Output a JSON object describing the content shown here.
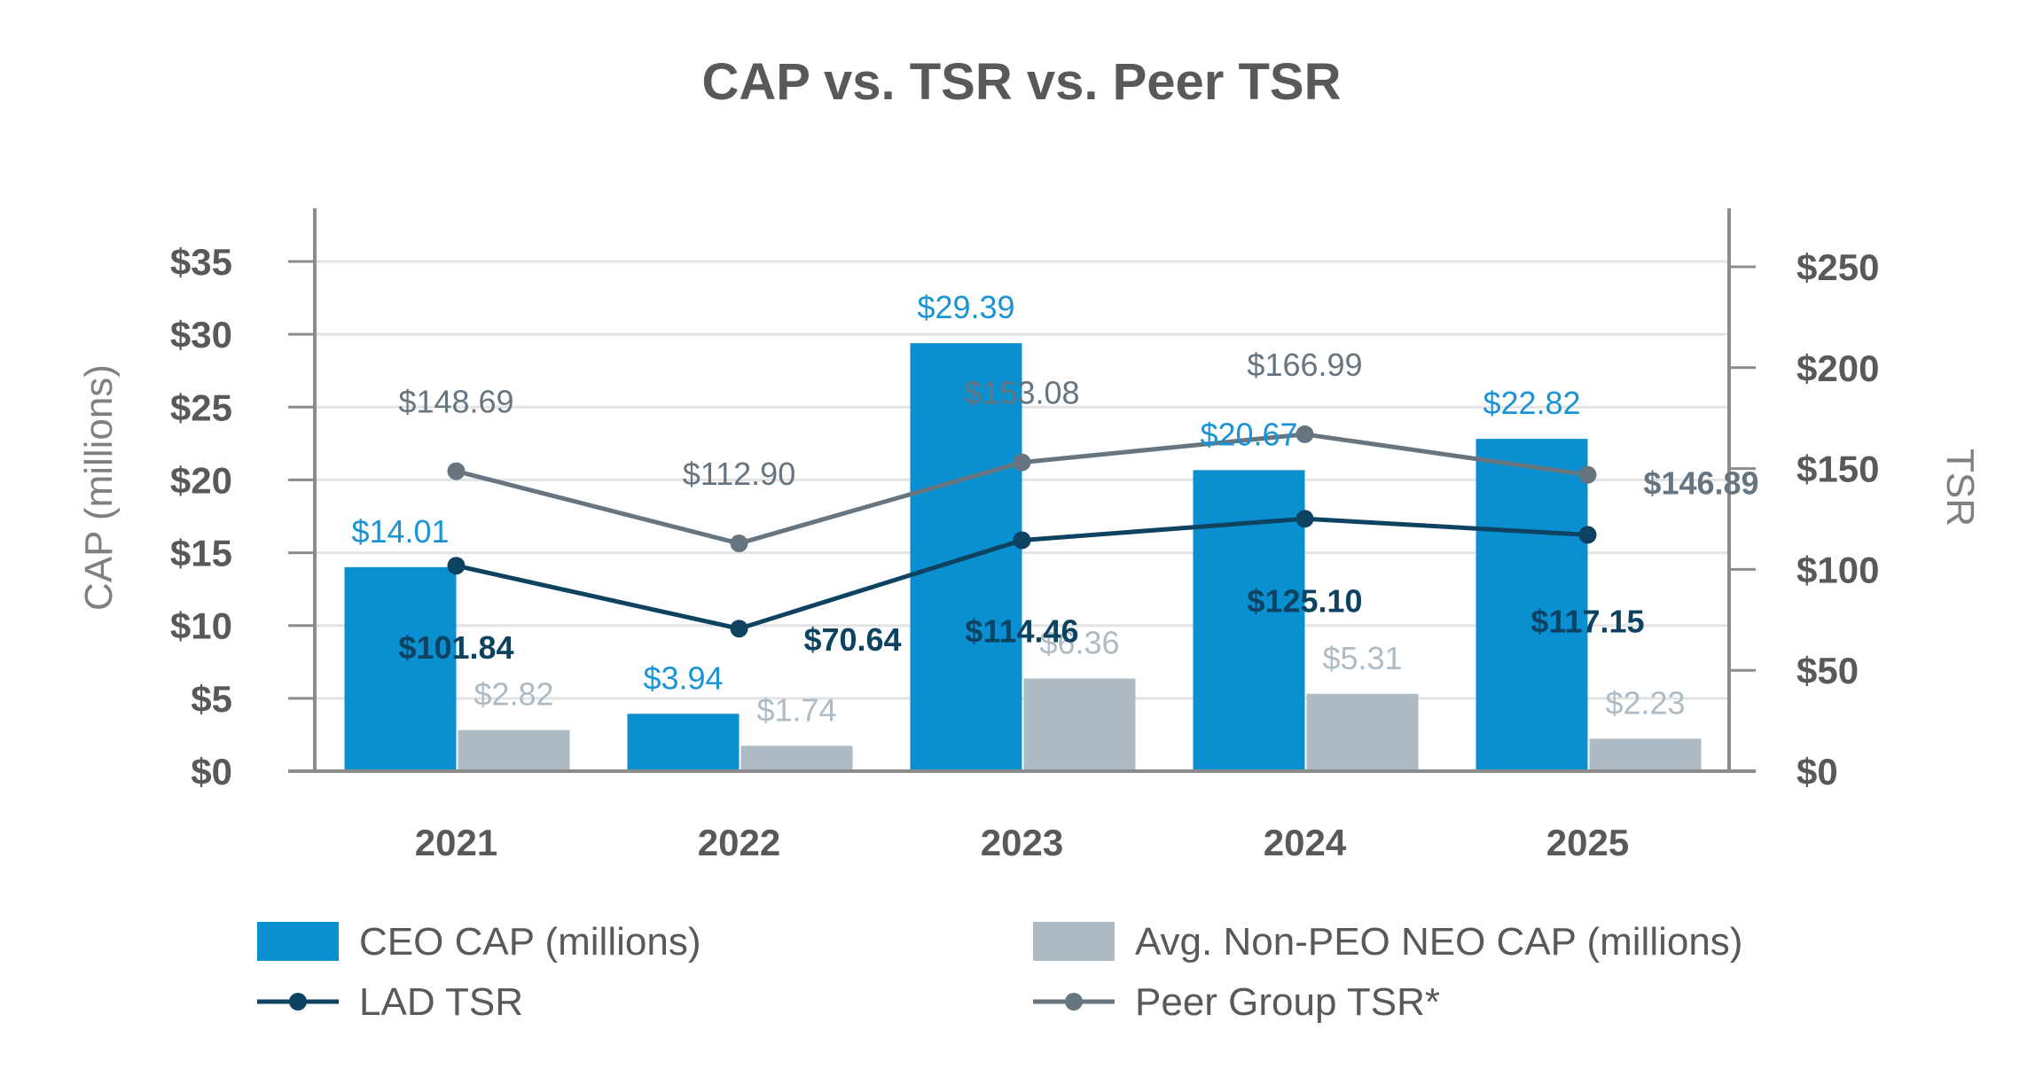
{
  "chart_data": {
    "type": "bar",
    "title": "CAP vs. TSR vs. Peer TSR",
    "categories": [
      "2021",
      "2022",
      "2023",
      "2024",
      "2025"
    ],
    "y_left": {
      "label": "CAP (millions)",
      "ylim": [
        0,
        35
      ],
      "ticks": [
        0,
        5,
        10,
        15,
        20,
        25,
        30,
        35
      ],
      "tick_labels": [
        "$0",
        "$5",
        "$10",
        "$15",
        "$20",
        "$25",
        "$30",
        "$35"
      ]
    },
    "y_right": {
      "label": "TSR",
      "ylim": [
        0,
        250
      ],
      "ticks": [
        0,
        50,
        100,
        150,
        200,
        250
      ],
      "tick_labels": [
        "$0",
        "$50",
        "$100",
        "$150",
        "$200",
        "$250"
      ]
    },
    "grid": true,
    "legend_position": "bottom",
    "series": [
      {
        "name": "CEO CAP (millions)",
        "kind": "bar",
        "axis": "left",
        "color": "#0a8fd0",
        "values": [
          14.01,
          3.94,
          29.39,
          20.67,
          22.82
        ],
        "labels": [
          "$14.01",
          "$3.94",
          "$29.39",
          "$20.67",
          "$22.82"
        ]
      },
      {
        "name": "Avg. Non-PEO NEO CAP (millions)",
        "kind": "bar",
        "axis": "left",
        "color": "#aebbc4",
        "values": [
          2.82,
          1.74,
          6.36,
          5.31,
          2.23
        ],
        "labels": [
          "$2.82",
          "$1.74",
          "$6.36",
          "$5.31",
          "$2.23"
        ]
      },
      {
        "name": "LAD TSR",
        "kind": "line",
        "axis": "right",
        "color": "#0d4361",
        "values": [
          101.84,
          70.64,
          114.46,
          125.1,
          117.15
        ],
        "labels": [
          "$101.84",
          "$70.64",
          "$114.46",
          "$125.10",
          "$117.15"
        ]
      },
      {
        "name": "Peer Group TSR*",
        "kind": "line",
        "axis": "right",
        "color": "#66757f",
        "values": [
          148.69,
          112.9,
          153.08,
          166.99,
          146.89
        ],
        "labels": [
          "$148.69",
          "$112.90",
          "$153.08",
          "$166.99",
          "$146.89"
        ]
      }
    ]
  }
}
